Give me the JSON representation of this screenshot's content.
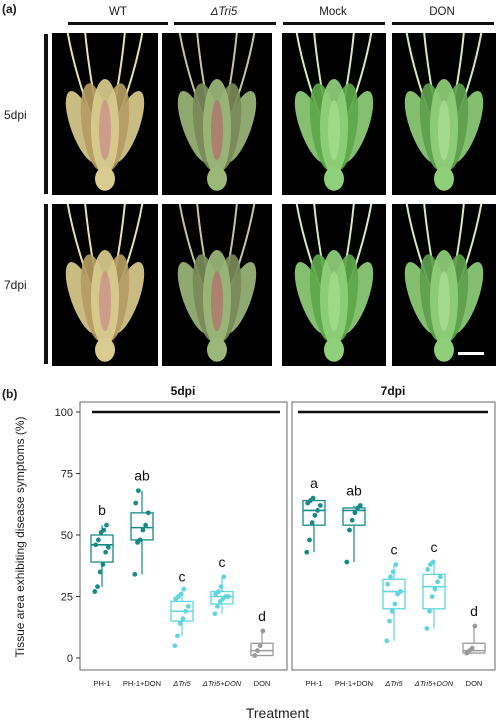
{
  "figure": {
    "panel_a_label": "(a)",
    "panel_b_label": "(b)",
    "columns": [
      "WT",
      "ΔTri5",
      "Mock",
      "DON"
    ],
    "rows": [
      "5dpi",
      "7dpi"
    ]
  },
  "chart_data": {
    "type": "box",
    "ylabel": "Tissue area exhibiting disease symptoms (%)",
    "xlabel": "Treatment",
    "ylim": [
      0,
      100
    ],
    "yticks": [
      0,
      25,
      50,
      75,
      100
    ],
    "groups": [
      "5dpi",
      "7dpi"
    ],
    "categories": [
      "PH-1",
      "PH-1+DON",
      "ΔTri5",
      "ΔTri5+DON",
      "DON"
    ],
    "colors": {
      "PH-1": "#168a86",
      "PH-1+DON": "#168a86",
      "ΔTri5": "#5fd6e0",
      "ΔTri5+DON": "#5fd6e0",
      "DON": "#9a9a9a"
    },
    "series": [
      {
        "group": "5dpi",
        "category": "PH-1",
        "letter": "b",
        "box": {
          "q1": 39,
          "median": 46,
          "q3": 50,
          "whisker_low": 29,
          "whisker_high": 54
        },
        "points": [
          27,
          29,
          35,
          38,
          43,
          45,
          46,
          48,
          51,
          52,
          54
        ]
      },
      {
        "group": "5dpi",
        "category": "PH-1+DON",
        "letter": "ab",
        "box": {
          "q1": 48,
          "median": 53,
          "q3": 59,
          "whisker_low": 34,
          "whisker_high": 68
        },
        "points": [
          34,
          47,
          48,
          52,
          54,
          59,
          63,
          68
        ]
      },
      {
        "group": "5dpi",
        "category": "ΔTri5",
        "letter": "c",
        "box": {
          "q1": 15,
          "median": 19,
          "q3": 23,
          "whisker_low": 9,
          "whisker_high": 27
        },
        "points": [
          5,
          9,
          14,
          16,
          19,
          21,
          24,
          25,
          26,
          28
        ]
      },
      {
        "group": "5dpi",
        "category": "ΔTri5+DON",
        "letter": "c",
        "box": {
          "q1": 22,
          "median": 25,
          "q3": 27,
          "whisker_low": 18,
          "whisker_high": 33
        },
        "points": [
          18,
          21,
          23,
          24,
          25,
          25,
          26,
          27,
          29,
          33
        ]
      },
      {
        "group": "5dpi",
        "category": "DON",
        "letter": "d",
        "box": {
          "q1": 1,
          "median": 3,
          "q3": 6,
          "whisker_low": 1,
          "whisker_high": 11
        },
        "points": [
          1,
          3,
          5,
          11
        ]
      },
      {
        "group": "7dpi",
        "category": "PH-1",
        "letter": "a",
        "box": {
          "q1": 54,
          "median": 60,
          "q3": 64,
          "whisker_low": 43,
          "whisker_high": 65
        },
        "points": [
          43,
          48,
          55,
          58,
          60,
          62,
          63,
          64,
          65
        ]
      },
      {
        "group": "7dpi",
        "category": "PH-1+DON",
        "letter": "ab",
        "box": {
          "q1": 54,
          "median": 60,
          "q3": 61,
          "whisker_low": 39,
          "whisker_high": 62
        },
        "points": [
          39,
          52,
          56,
          59,
          61,
          62
        ]
      },
      {
        "group": "7dpi",
        "category": "ΔTri5",
        "letter": "c",
        "box": {
          "q1": 20,
          "median": 27,
          "q3": 32,
          "whisker_low": 7,
          "whisker_high": 38
        },
        "points": [
          7,
          15,
          19,
          22,
          26,
          27,
          30,
          33,
          35,
          38
        ]
      },
      {
        "group": "7dpi",
        "category": "ΔTri5+DON",
        "letter": "c",
        "box": {
          "q1": 20,
          "median": 29,
          "q3": 34,
          "whisker_low": 12,
          "whisker_high": 39
        },
        "points": [
          12,
          19,
          25,
          28,
          31,
          33,
          36,
          38,
          39
        ]
      },
      {
        "group": "7dpi",
        "category": "DON",
        "letter": "d",
        "box": {
          "q1": 2,
          "median": 3,
          "q3": 6,
          "whisker_low": 2,
          "whisker_high": 13
        },
        "points": [
          2,
          3,
          4,
          13
        ]
      }
    ]
  }
}
